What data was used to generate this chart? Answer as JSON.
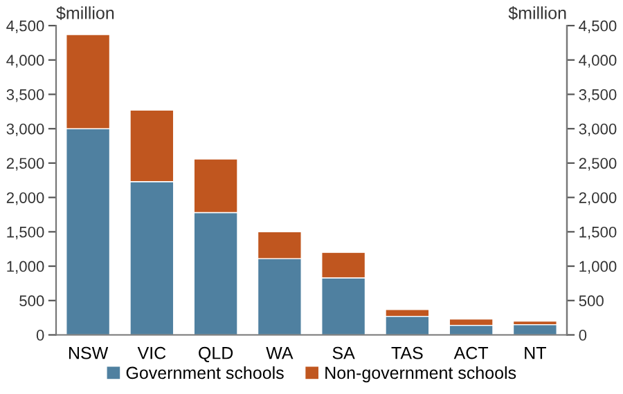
{
  "chart_data": {
    "type": "bar",
    "stacked": true,
    "ylabel": "$million",
    "y2label": "$million",
    "categories": [
      "NSW",
      "VIC",
      "QLD",
      "WA",
      "SA",
      "TAS",
      "ACT",
      "NT"
    ],
    "series": [
      {
        "name": "Government schools",
        "color": "#4f80a0",
        "values": [
          3000,
          2230,
          1780,
          1110,
          830,
          270,
          140,
          150
        ]
      },
      {
        "name": "Non-government schools",
        "color": "#c0561f",
        "values": [
          1370,
          1040,
          780,
          390,
          370,
          100,
          90,
          50
        ]
      }
    ],
    "ylim": [
      0,
      4500
    ],
    "yticks": [
      0,
      {
        "value": 500,
        "label": "500"
      },
      {
        "value": 1000,
        "label": "1,000"
      },
      {
        "value": 1500,
        "label": "1,500"
      },
      {
        "value": 2000,
        "label": "2,000"
      },
      {
        "value": 2500,
        "label": "2,500"
      },
      {
        "value": 3000,
        "label": "3,000"
      },
      {
        "value": 3500,
        "label": "3,500"
      },
      {
        "value": 4000,
        "label": "4,000"
      },
      {
        "value": 4500,
        "label": "4,500"
      }
    ],
    "y2lim": [
      0,
      4500
    ],
    "y2ticks": [
      0,
      {
        "value": 500,
        "label": "500"
      },
      {
        "value": 1000,
        "label": "1,000"
      },
      {
        "value": 1500,
        "label": "1,500"
      },
      {
        "value": 2000,
        "label": "2,000"
      },
      {
        "value": 2500,
        "label": "2,500"
      },
      {
        "value": 3000,
        "label": "3,000"
      },
      {
        "value": 3500,
        "label": "3,500"
      },
      {
        "value": 4000,
        "label": "4,000"
      },
      {
        "value": 4500,
        "label": "4,500"
      }
    ],
    "grid": false,
    "legend": "bottom"
  }
}
